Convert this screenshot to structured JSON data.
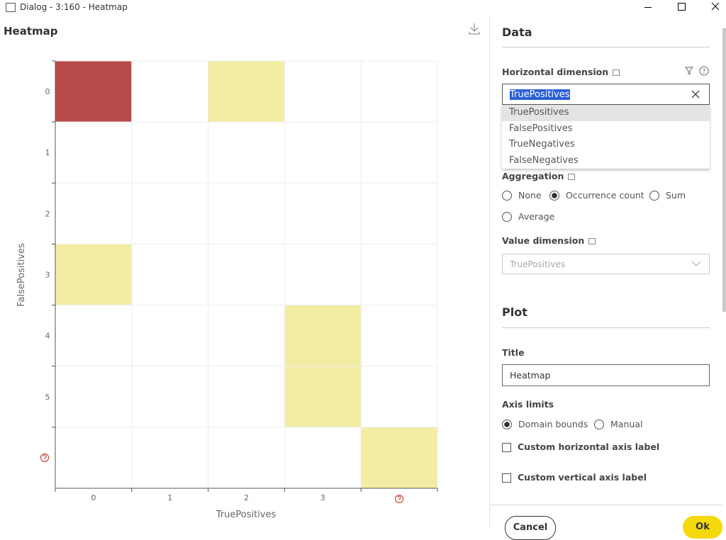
{
  "window": {
    "title": "Dialog - 3:160 - Heatmap"
  },
  "heatmap": {
    "title": "Heatmap",
    "x_label": "TruePositives",
    "y_label": "FalsePositives",
    "x_categories": [
      0,
      1,
      2,
      3,
      null
    ],
    "y_categories": [
      0,
      1,
      2,
      3,
      4,
      5,
      null
    ],
    "values": [
      [
        2,
        0,
        1,
        0,
        0
      ],
      [
        0,
        0,
        0,
        0,
        0
      ],
      [
        0,
        0,
        0,
        0,
        0
      ],
      [
        1,
        0,
        0,
        0,
        0
      ],
      [
        0,
        0,
        0,
        1,
        0
      ],
      [
        0,
        0,
        0,
        1,
        0
      ],
      [
        0,
        0,
        0,
        0,
        1
      ]
    ],
    "colors": [
      "#ffffff",
      "#f3eda4",
      "#b94a4a"
    ]
  },
  "panel": {
    "data_heading": "Data",
    "horizontal_dimension": {
      "label": "Horizontal dimension",
      "value": "TruePositives",
      "options": [
        "TruePositives",
        "FalsePositives",
        "TrueNegatives",
        "FalseNegatives"
      ]
    },
    "aggregation": {
      "label": "Aggregation",
      "options": [
        "None",
        "Occurrence count",
        "Sum",
        "Average"
      ],
      "selected": 1
    },
    "value_dimension": {
      "label": "Value dimension",
      "value": "TruePositives"
    },
    "plot_heading": "Plot",
    "title": {
      "label": "Title",
      "value": "Heatmap"
    },
    "axis_limits": {
      "label": "Axis limits",
      "options": [
        "Domain bounds",
        "Manual"
      ],
      "selected": 0
    },
    "checkboxes": [
      "Custom horizontal axis label",
      "Custom vertical axis label"
    ]
  },
  "buttons": [
    "Cancel",
    "Ok"
  ]
}
